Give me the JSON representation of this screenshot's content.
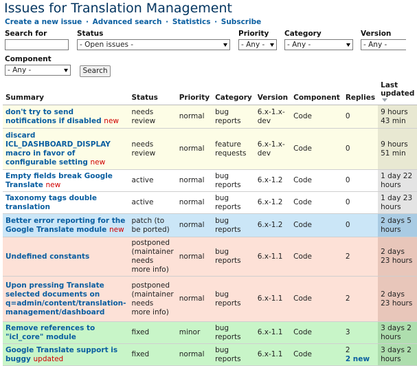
{
  "page": {
    "title": "Issues for Translation Management"
  },
  "links": [
    {
      "label": "Create a new issue"
    },
    {
      "label": "Advanced search"
    },
    {
      "label": "Statistics"
    },
    {
      "label": "Subscribe"
    }
  ],
  "link_separator": "·",
  "filters": {
    "search_label": "Search for",
    "search_value": "",
    "status_label": "Status",
    "status_value": "- Open issues -",
    "priority_label": "Priority",
    "priority_value": "- Any -",
    "category_label": "Category",
    "category_value": "- Any -",
    "version_label": "Version",
    "version_value": "- Any -",
    "component_label": "Component",
    "component_value": "- Any -",
    "search_button": "Search"
  },
  "table": {
    "headers": {
      "summary": "Summary",
      "status": "Status",
      "priority": "Priority",
      "category": "Category",
      "version": "Version",
      "component": "Component",
      "replies": "Replies",
      "last_updated": "Last updated"
    },
    "rows": [
      {
        "summary": "don't try to send notifications if disabled",
        "mark": "new",
        "status": "needs review",
        "priority": "normal",
        "category": "bug reports",
        "version": "6.x-1.x-dev",
        "component": "Code",
        "replies": "0",
        "new_replies": "",
        "last_updated": "9 hours 43 min"
      },
      {
        "summary": "discard ICL_DASHBOARD_DISPLAY macro in favor of configurable setting",
        "mark": "new",
        "status": "needs review",
        "priority": "normal",
        "category": "feature requests",
        "version": "6.x-1.x-dev",
        "component": "Code",
        "replies": "0",
        "new_replies": "",
        "last_updated": "9 hours 51 min"
      },
      {
        "summary": "Empty fields break Google Translate",
        "mark": "new",
        "status": "active",
        "priority": "normal",
        "category": "bug reports",
        "version": "6.x-1.2",
        "component": "Code",
        "replies": "0",
        "new_replies": "",
        "last_updated": "1 day 22 hours"
      },
      {
        "summary": "Taxonomy tags double translation",
        "mark": "",
        "status": "active",
        "priority": "normal",
        "category": "bug reports",
        "version": "6.x-1.2",
        "component": "Code",
        "replies": "0",
        "new_replies": "",
        "last_updated": "1 day 23 hours"
      },
      {
        "summary": "Better error reporting for the Google Translate module",
        "mark": "new",
        "status": "patch (to be ported)",
        "priority": "normal",
        "category": "bug reports",
        "version": "6.x-1.2",
        "component": "Code",
        "replies": "0",
        "new_replies": "",
        "last_updated": "2 days 5 hours"
      },
      {
        "summary": "Undefined constants",
        "mark": "",
        "status": "postponed (maintainer needs more info)",
        "priority": "normal",
        "category": "bug reports",
        "version": "6.x-1.1",
        "component": "Code",
        "replies": "2",
        "new_replies": "",
        "last_updated": "2 days 23 hours"
      },
      {
        "summary": "Upon pressing Translate selected documents on q=admin/content/translation-management/dashboard",
        "mark": "",
        "status": "postponed (maintainer needs more info)",
        "priority": "normal",
        "category": "bug reports",
        "version": "6.x-1.1",
        "component": "Code",
        "replies": "2",
        "new_replies": "",
        "last_updated": "2 days 23 hours"
      },
      {
        "summary": "Remove references to \"icl_core\" module",
        "mark": "",
        "status": "fixed",
        "priority": "minor",
        "category": "bug reports",
        "version": "6.x-1.1",
        "component": "Code",
        "replies": "3",
        "new_replies": "",
        "last_updated": "3 days 2 hours"
      },
      {
        "summary": "Google Translate support is buggy",
        "mark": "updated",
        "status": "fixed",
        "priority": "normal",
        "category": "bug reports",
        "version": "6.x-1.1",
        "component": "Code",
        "replies": "2",
        "new_replies": "2 new",
        "last_updated": "3 days 2 hours"
      }
    ],
    "row_status_classes": [
      "s-review",
      "s-review",
      "s-active",
      "s-active",
      "s-patch",
      "s-postponed",
      "s-postponed",
      "s-fixed",
      "s-fixed"
    ]
  },
  "colors": {
    "link": "#0a5ea0",
    "new_marker": "#d00000",
    "needs_review_bg": "#fdfde6",
    "patch_bg": "#cbe6f7",
    "postponed_bg": "#fde1d7",
    "fixed_bg": "#c8f5c8"
  },
  "icons": {
    "sort_indicator": "sort-descending-icon",
    "dropdown": "chevron-down-icon"
  }
}
